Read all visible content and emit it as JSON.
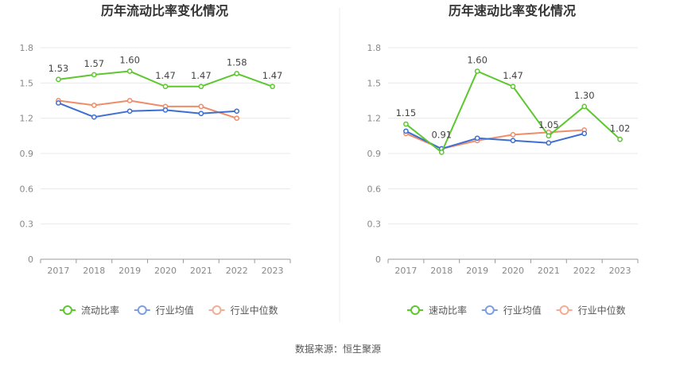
{
  "source_text": "数据来源：恒生聚源",
  "colors": {
    "primary": "#5cc72f",
    "industry_avg": "#3d6fd1",
    "industry_median": "#ef8c69",
    "grid": "#e8e8e8",
    "axis": "#999999"
  },
  "chart_data": [
    {
      "type": "line",
      "title": "历年流动比率变化情况",
      "categories": [
        "2017",
        "2018",
        "2019",
        "2020",
        "2021",
        "2022",
        "2023"
      ],
      "ylim": [
        0,
        1.8
      ],
      "yticks": [
        "0",
        "0.3",
        "0.6",
        "0.9",
        "1.2",
        "1.5",
        "1.8"
      ],
      "grid": true,
      "legend_position": "bottom",
      "series": [
        {
          "name": "流动比率",
          "values": [
            1.53,
            1.57,
            1.6,
            1.47,
            1.47,
            1.58,
            1.47
          ],
          "labels": [
            "1.53",
            "1.57",
            "1.60",
            "1.47",
            "1.47",
            "1.58",
            "1.47"
          ]
        },
        {
          "name": "行业均值",
          "values": [
            1.33,
            1.21,
            1.26,
            1.27,
            1.24,
            1.26,
            null
          ]
        },
        {
          "name": "行业中位数",
          "values": [
            1.35,
            1.31,
            1.35,
            1.3,
            1.3,
            1.2,
            null
          ]
        }
      ]
    },
    {
      "type": "line",
      "title": "历年速动比率变化情况",
      "categories": [
        "2017",
        "2018",
        "2019",
        "2020",
        "2021",
        "2022",
        "2023"
      ],
      "ylim": [
        0,
        1.8
      ],
      "yticks": [
        "0",
        "0.3",
        "0.6",
        "0.9",
        "1.2",
        "1.5",
        "1.8"
      ],
      "grid": true,
      "legend_position": "bottom",
      "series": [
        {
          "name": "速动比率",
          "values": [
            1.15,
            0.91,
            1.6,
            1.47,
            1.05,
            1.3,
            1.02
          ],
          "labels": [
            "1.15",
            "0.91",
            "1.60",
            "1.47",
            "1.05",
            "1.30",
            "1.02"
          ]
        },
        {
          "name": "行业均值",
          "values": [
            1.09,
            0.94,
            1.03,
            1.01,
            0.99,
            1.07,
            null
          ]
        },
        {
          "name": "行业中位数",
          "values": [
            1.07,
            0.94,
            1.01,
            1.06,
            1.08,
            1.1,
            null
          ]
        }
      ]
    }
  ]
}
